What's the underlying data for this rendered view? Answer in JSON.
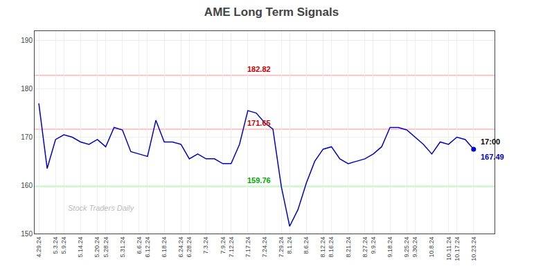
{
  "chart_data": {
    "type": "line",
    "title": "AME Long Term Signals",
    "categories": [
      "4.29.24",
      null,
      "5.3.24",
      "5.9.24",
      null,
      "5.14.24",
      null,
      "5.20.24",
      "5.28.24",
      null,
      "5.31.24",
      null,
      "6.6.24",
      "6.12.24",
      null,
      "6.18.24",
      null,
      "6.24.24",
      "6.28.24",
      null,
      "7.3.24",
      null,
      "7.9.24",
      "7.12.24",
      null,
      "7.17.24",
      null,
      "7.24.24",
      null,
      "7.29.24",
      "8.1.24",
      null,
      "8.6.24",
      null,
      "8.12.24",
      "8.16.24",
      null,
      "8.21.24",
      null,
      "8.27.24",
      "9.9.24",
      null,
      "9.18.24",
      null,
      "9.25.24",
      "9.30.24",
      null,
      "10.8.24",
      null,
      "10.11.24",
      "10.17.24",
      null,
      "10.23.24"
    ],
    "values": [
      177.0,
      163.5,
      169.5,
      170.5,
      170.0,
      169.0,
      168.5,
      169.5,
      168.0,
      172.0,
      171.5,
      167.0,
      166.5,
      166.0,
      173.5,
      169.0,
      169.0,
      168.5,
      165.5,
      166.5,
      165.5,
      165.5,
      164.5,
      164.5,
      168.5,
      175.5,
      175.0,
      173.0,
      171.65,
      159.76,
      151.5,
      155.0,
      160.5,
      165.0,
      167.5,
      168.0,
      165.5,
      164.5,
      165.0,
      165.5,
      166.5,
      168.0,
      172.0,
      172.0,
      171.5,
      170.0,
      168.5,
      166.5,
      169.0,
      168.5,
      170.0,
      169.5,
      167.49
    ],
    "color": "#0000cc",
    "reference_lines": [
      {
        "value": 182.82,
        "color": "#ffb3b3",
        "label_color": "#cc0000"
      },
      {
        "value": 171.65,
        "color": "#ffb3b3",
        "label_color": "#cc0000"
      },
      {
        "value": 159.76,
        "color": "#b3ffb3",
        "label_color": "#00aa00"
      }
    ],
    "last_point": {
      "value": 167.49,
      "time": "17:00",
      "marker": "circle"
    },
    "watermark": "Stock Traders Daily",
    "ylim": [
      150,
      192
    ],
    "yticks": [
      150,
      160,
      170,
      180,
      190
    ],
    "grid": true
  }
}
